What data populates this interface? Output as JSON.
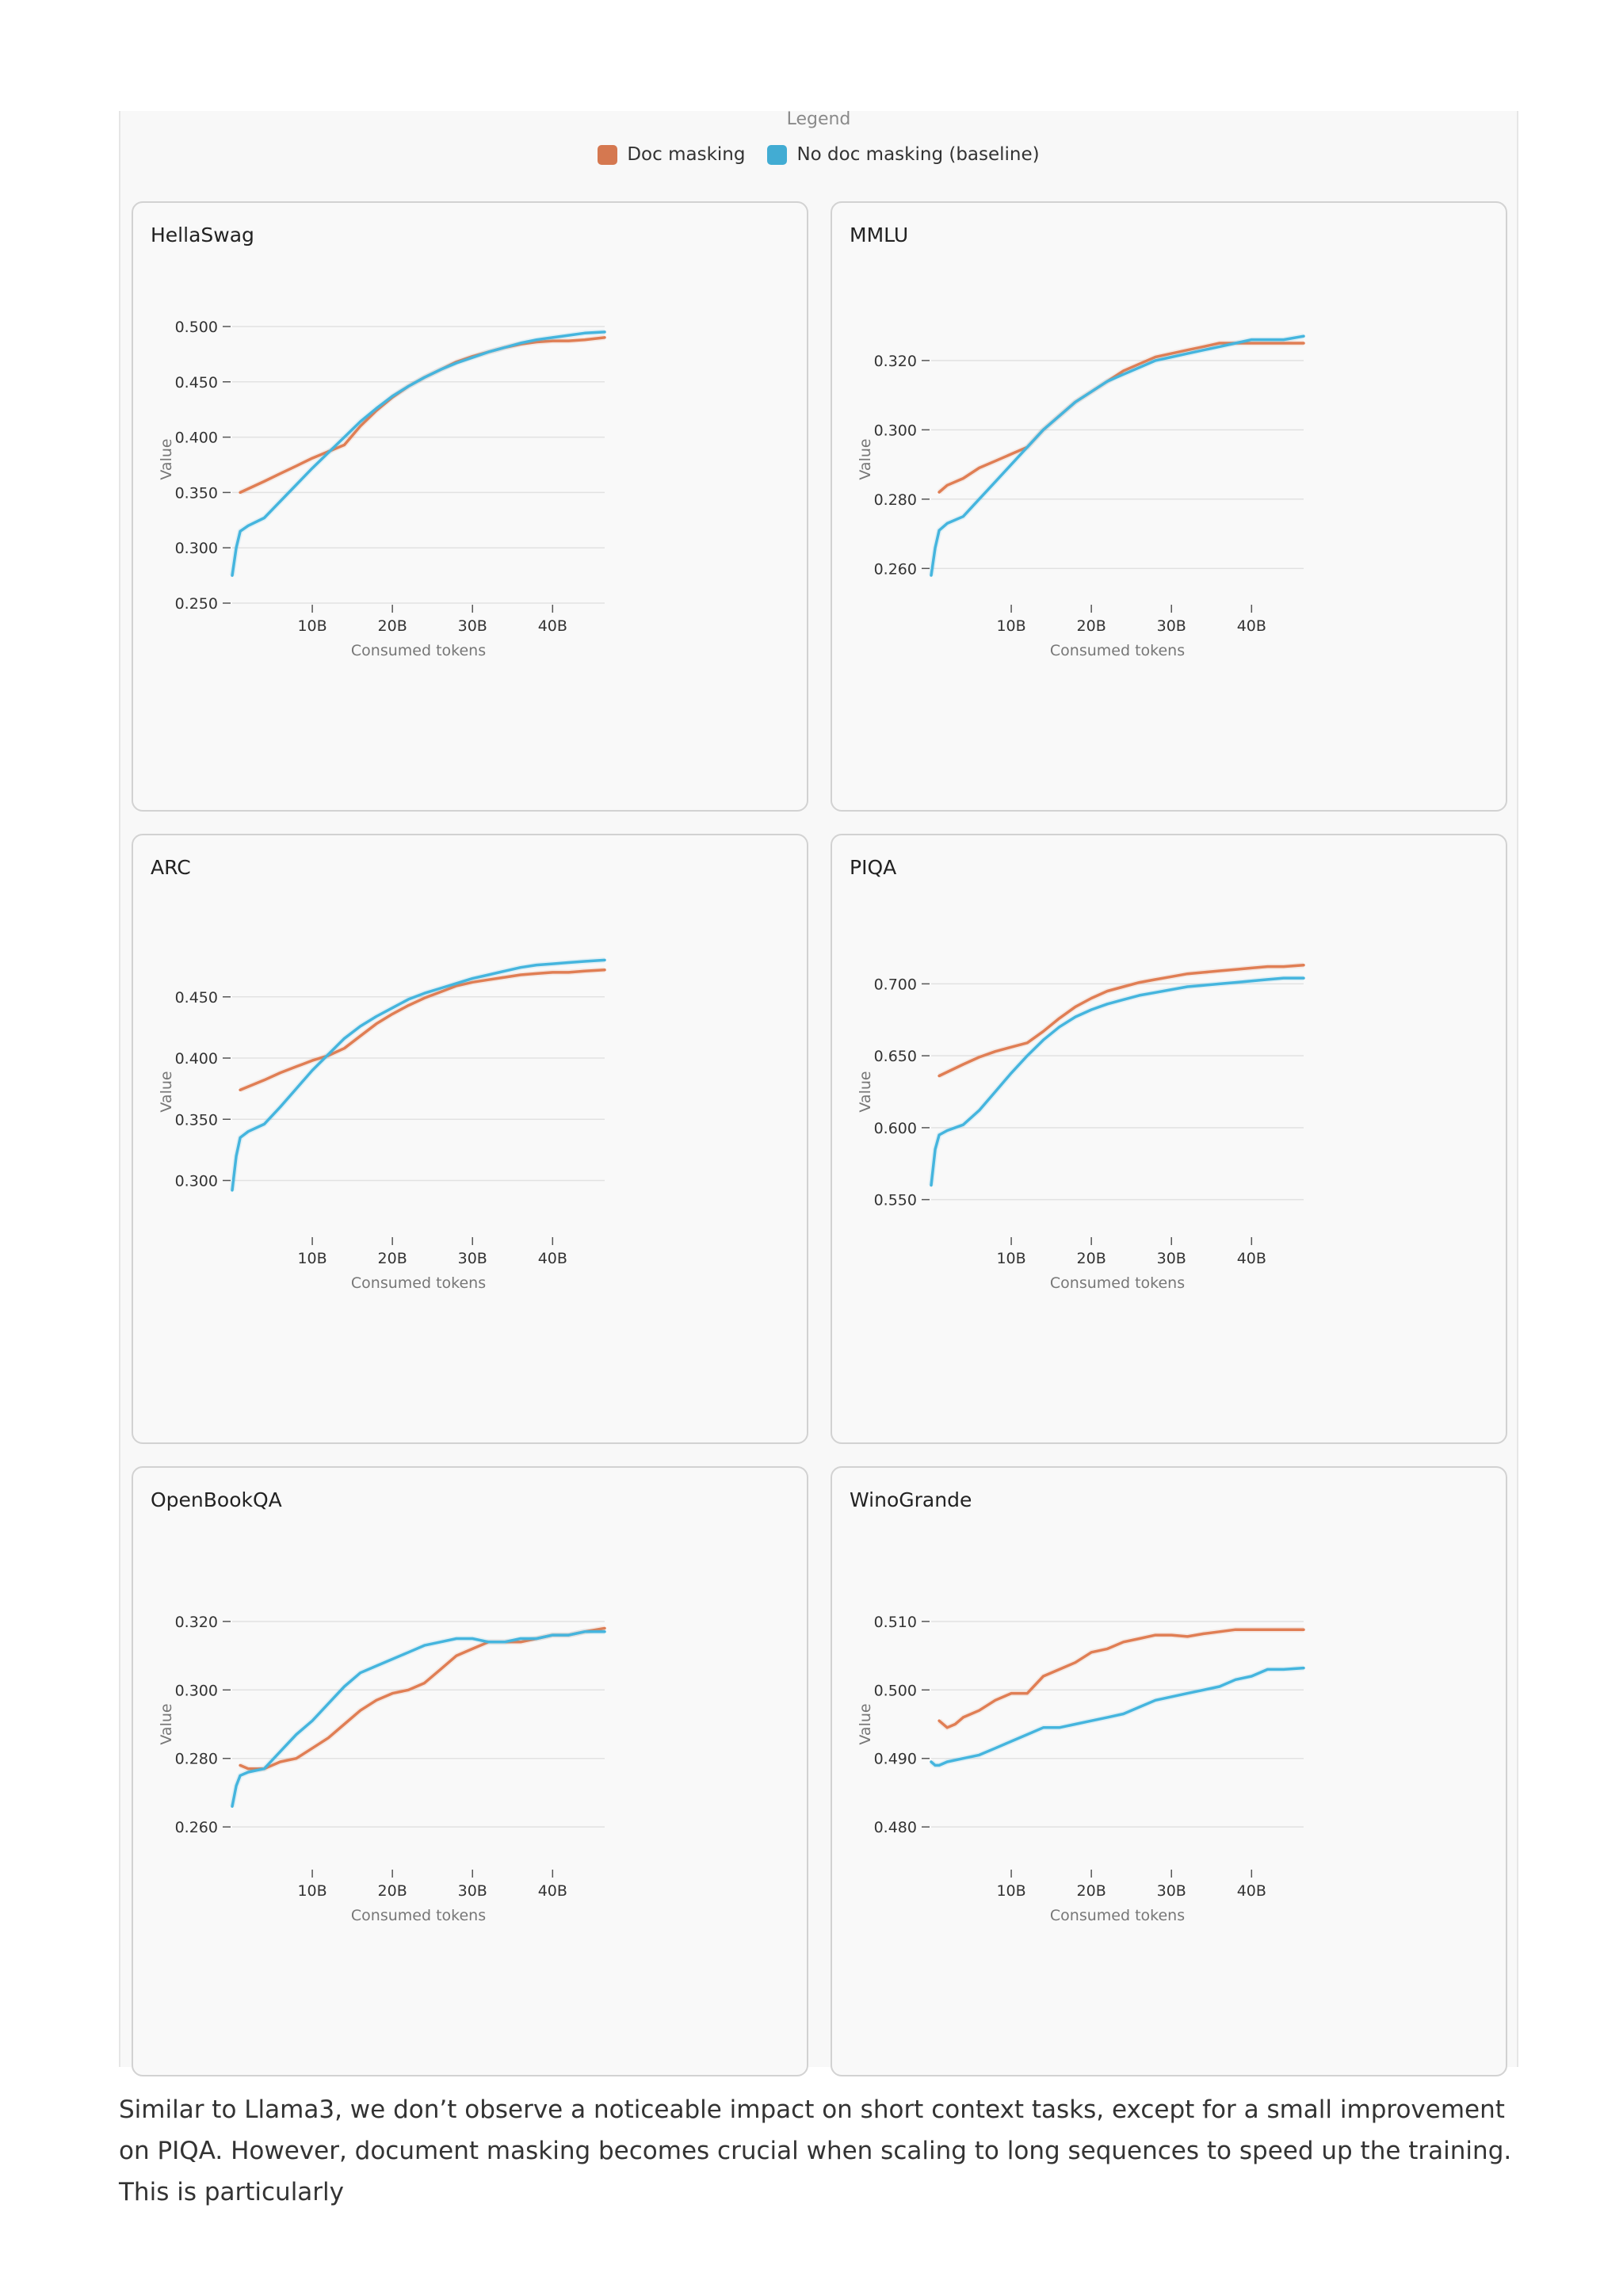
{
  "legend": {
    "title": "Legend",
    "items": [
      {
        "label": "Doc masking",
        "color": "#e07e54"
      },
      {
        "label": "No doc masking (baseline)",
        "color": "#45b5de"
      }
    ]
  },
  "caption": "Similar to Llama3, we don’t observe a noticeable impact on short context tasks, except for a small improvement on PIQA. However, document masking becomes crucial when scaling to long sequences to speed up the training. This is particularly",
  "chart_data": [
    {
      "type": "line",
      "title": "HellaSwag",
      "xlabel": "Consumed tokens",
      "ylabel": "Value",
      "xlim": [
        0,
        46.5
      ],
      "ylim": [
        0.25,
        0.51
      ],
      "xticks": [
        10,
        20,
        30,
        40
      ],
      "xtick_labels": [
        "10B",
        "20B",
        "30B",
        "40B"
      ],
      "yticks": [
        0.25,
        0.3,
        0.35,
        0.4,
        0.45,
        0.5
      ],
      "ytick_labels": [
        "0.250",
        "0.300",
        "0.350",
        "0.400",
        "0.450",
        "0.500"
      ],
      "series": [
        {
          "name": "Doc masking",
          "color": "#e07e54",
          "x": [
            1,
            4,
            6,
            8,
            10,
            12,
            14,
            16,
            18,
            20,
            22,
            24,
            26,
            28,
            30,
            32,
            34,
            36,
            38,
            40,
            42,
            44,
            46.5
          ],
          "y": [
            0.35,
            0.36,
            0.367,
            0.374,
            0.381,
            0.387,
            0.393,
            0.41,
            0.424,
            0.436,
            0.446,
            0.454,
            0.461,
            0.468,
            0.473,
            0.477,
            0.481,
            0.484,
            0.486,
            0.487,
            0.487,
            0.488,
            0.49
          ]
        },
        {
          "name": "No doc masking (baseline)",
          "color": "#45b5de",
          "x": [
            0,
            0.5,
            1,
            2,
            4,
            6,
            8,
            10,
            12,
            14,
            16,
            18,
            20,
            22,
            24,
            26,
            28,
            30,
            32,
            34,
            36,
            38,
            40,
            42,
            44,
            46.5
          ],
          "y": [
            0.275,
            0.3,
            0.315,
            0.32,
            0.327,
            0.342,
            0.357,
            0.372,
            0.386,
            0.4,
            0.414,
            0.426,
            0.437,
            0.446,
            0.454,
            0.461,
            0.467,
            0.472,
            0.477,
            0.481,
            0.485,
            0.488,
            0.49,
            0.492,
            0.494,
            0.495
          ]
        }
      ]
    },
    {
      "type": "line",
      "title": "MMLU",
      "xlabel": "Consumed tokens",
      "ylabel": "Value",
      "xlim": [
        0,
        46.5
      ],
      "ylim": [
        0.25,
        0.333
      ],
      "xticks": [
        10,
        20,
        30,
        40
      ],
      "xtick_labels": [
        "10B",
        "20B",
        "30B",
        "40B"
      ],
      "yticks": [
        0.26,
        0.28,
        0.3,
        0.32
      ],
      "ytick_labels": [
        "0.260",
        "0.280",
        "0.300",
        "0.320"
      ],
      "series": [
        {
          "name": "Doc masking",
          "color": "#e07e54",
          "x": [
            1,
            2,
            4,
            6,
            8,
            10,
            12,
            14,
            16,
            18,
            20,
            22,
            24,
            26,
            28,
            30,
            32,
            34,
            36,
            38,
            40,
            42,
            44,
            46.5
          ],
          "y": [
            0.282,
            0.284,
            0.286,
            0.289,
            0.291,
            0.293,
            0.295,
            0.3,
            0.304,
            0.308,
            0.311,
            0.314,
            0.317,
            0.319,
            0.321,
            0.322,
            0.323,
            0.324,
            0.325,
            0.325,
            0.325,
            0.325,
            0.325,
            0.325
          ]
        },
        {
          "name": "No doc masking (baseline)",
          "color": "#45b5de",
          "x": [
            0,
            0.5,
            1,
            2,
            4,
            6,
            8,
            10,
            12,
            14,
            16,
            18,
            20,
            22,
            24,
            26,
            28,
            30,
            32,
            34,
            36,
            38,
            40,
            42,
            44,
            46.5
          ],
          "y": [
            0.258,
            0.266,
            0.271,
            0.273,
            0.275,
            0.28,
            0.285,
            0.29,
            0.295,
            0.3,
            0.304,
            0.308,
            0.311,
            0.314,
            0.316,
            0.318,
            0.32,
            0.321,
            0.322,
            0.323,
            0.324,
            0.325,
            0.326,
            0.326,
            0.326,
            0.327
          ]
        }
      ]
    },
    {
      "type": "line",
      "title": "ARC",
      "xlabel": "Consumed tokens",
      "ylabel": "Value",
      "xlim": [
        0,
        46.5
      ],
      "ylim": [
        0.255,
        0.49
      ],
      "xticks": [
        10,
        20,
        30,
        40
      ],
      "xtick_labels": [
        "10B",
        "20B",
        "30B",
        "40B"
      ],
      "yticks": [
        0.3,
        0.35,
        0.4,
        0.45
      ],
      "ytick_labels": [
        "0.300",
        "0.350",
        "0.400",
        "0.450"
      ],
      "series": [
        {
          "name": "Doc masking",
          "color": "#e07e54",
          "x": [
            1,
            4,
            6,
            8,
            10,
            12,
            14,
            16,
            18,
            20,
            22,
            24,
            26,
            28,
            30,
            32,
            34,
            36,
            38,
            40,
            42,
            44,
            46.5
          ],
          "y": [
            0.374,
            0.382,
            0.388,
            0.393,
            0.398,
            0.402,
            0.408,
            0.418,
            0.428,
            0.436,
            0.443,
            0.449,
            0.454,
            0.459,
            0.462,
            0.464,
            0.466,
            0.468,
            0.469,
            0.47,
            0.47,
            0.471,
            0.472
          ]
        },
        {
          "name": "No doc masking (baseline)",
          "color": "#45b5de",
          "x": [
            0,
            0.5,
            1,
            2,
            4,
            6,
            8,
            10,
            12,
            14,
            16,
            18,
            20,
            22,
            24,
            26,
            28,
            30,
            32,
            34,
            36,
            38,
            40,
            42,
            44,
            46.5
          ],
          "y": [
            0.292,
            0.32,
            0.335,
            0.34,
            0.346,
            0.36,
            0.375,
            0.39,
            0.403,
            0.416,
            0.426,
            0.434,
            0.441,
            0.448,
            0.453,
            0.457,
            0.461,
            0.465,
            0.468,
            0.471,
            0.474,
            0.476,
            0.477,
            0.478,
            0.479,
            0.48
          ]
        }
      ]
    },
    {
      "type": "line",
      "title": "PIQA",
      "xlabel": "Consumed tokens",
      "ylabel": "Value",
      "xlim": [
        0,
        46.5
      ],
      "ylim": [
        0.525,
        0.725
      ],
      "xticks": [
        10,
        20,
        30,
        40
      ],
      "xtick_labels": [
        "10B",
        "20B",
        "30B",
        "40B"
      ],
      "yticks": [
        0.55,
        0.6,
        0.65,
        0.7
      ],
      "ytick_labels": [
        "0.550",
        "0.600",
        "0.650",
        "0.700"
      ],
      "series": [
        {
          "name": "Doc masking",
          "color": "#e07e54",
          "x": [
            1,
            4,
            6,
            8,
            10,
            12,
            14,
            16,
            18,
            20,
            22,
            24,
            26,
            28,
            30,
            32,
            34,
            36,
            38,
            40,
            42,
            44,
            46.5
          ],
          "y": [
            0.636,
            0.644,
            0.649,
            0.653,
            0.656,
            0.659,
            0.667,
            0.676,
            0.684,
            0.69,
            0.695,
            0.698,
            0.701,
            0.703,
            0.705,
            0.707,
            0.708,
            0.709,
            0.71,
            0.711,
            0.712,
            0.712,
            0.713
          ]
        },
        {
          "name": "No doc masking (baseline)",
          "color": "#45b5de",
          "x": [
            0,
            0.5,
            1,
            2,
            4,
            6,
            8,
            10,
            12,
            14,
            16,
            18,
            20,
            22,
            24,
            26,
            28,
            30,
            32,
            34,
            36,
            38,
            40,
            42,
            44,
            46.5
          ],
          "y": [
            0.56,
            0.585,
            0.595,
            0.598,
            0.602,
            0.612,
            0.625,
            0.638,
            0.65,
            0.661,
            0.67,
            0.677,
            0.682,
            0.686,
            0.689,
            0.692,
            0.694,
            0.696,
            0.698,
            0.699,
            0.7,
            0.701,
            0.702,
            0.703,
            0.704,
            0.704
          ]
        }
      ]
    },
    {
      "type": "line",
      "title": "OpenBookQA",
      "xlabel": "Consumed tokens",
      "ylabel": "Value",
      "xlim": [
        0,
        46.5
      ],
      "ylim": [
        0.248,
        0.332
      ],
      "xticks": [
        10,
        20,
        30,
        40
      ],
      "xtick_labels": [
        "10B",
        "20B",
        "30B",
        "40B"
      ],
      "yticks": [
        0.26,
        0.28,
        0.3,
        0.32
      ],
      "ytick_labels": [
        "0.260",
        "0.280",
        "0.300",
        "0.320"
      ],
      "series": [
        {
          "name": "Doc masking",
          "color": "#e07e54",
          "x": [
            1,
            2,
            4,
            6,
            8,
            10,
            12,
            14,
            16,
            18,
            20,
            22,
            24,
            26,
            28,
            30,
            32,
            34,
            36,
            38,
            40,
            42,
            44,
            46.5
          ],
          "y": [
            0.278,
            0.277,
            0.277,
            0.279,
            0.28,
            0.283,
            0.286,
            0.29,
            0.294,
            0.297,
            0.299,
            0.3,
            0.302,
            0.306,
            0.31,
            0.312,
            0.314,
            0.314,
            0.314,
            0.315,
            0.316,
            0.316,
            0.317,
            0.318
          ]
        },
        {
          "name": "No doc masking (baseline)",
          "color": "#45b5de",
          "x": [
            0,
            0.5,
            1,
            2,
            4,
            6,
            8,
            10,
            12,
            14,
            16,
            18,
            20,
            22,
            24,
            26,
            28,
            30,
            32,
            34,
            36,
            38,
            40,
            42,
            44,
            46.5
          ],
          "y": [
            0.266,
            0.272,
            0.275,
            0.276,
            0.277,
            0.282,
            0.287,
            0.291,
            0.296,
            0.301,
            0.305,
            0.307,
            0.309,
            0.311,
            0.313,
            0.314,
            0.315,
            0.315,
            0.314,
            0.314,
            0.315,
            0.315,
            0.316,
            0.316,
            0.317,
            0.317
          ]
        }
      ]
    },
    {
      "type": "line",
      "title": "WinoGrande",
      "xlabel": "Consumed tokens",
      "ylabel": "Value",
      "xlim": [
        0,
        46.5
      ],
      "ylim": [
        0.474,
        0.516
      ],
      "xticks": [
        10,
        20,
        30,
        40
      ],
      "xtick_labels": [
        "10B",
        "20B",
        "30B",
        "40B"
      ],
      "yticks": [
        0.48,
        0.49,
        0.5,
        0.51
      ],
      "ytick_labels": [
        "0.480",
        "0.490",
        "0.500",
        "0.510"
      ],
      "series": [
        {
          "name": "Doc masking",
          "color": "#e07e54",
          "x": [
            1,
            2,
            3,
            4,
            6,
            8,
            10,
            12,
            14,
            16,
            18,
            20,
            22,
            24,
            26,
            28,
            30,
            32,
            34,
            36,
            38,
            40,
            42,
            44,
            46.5
          ],
          "y": [
            0.4955,
            0.4945,
            0.495,
            0.496,
            0.497,
            0.4985,
            0.4995,
            0.4995,
            0.502,
            0.503,
            0.504,
            0.5055,
            0.506,
            0.507,
            0.5075,
            0.508,
            0.508,
            0.5078,
            0.5082,
            0.5085,
            0.5088,
            0.5088,
            0.5088,
            0.5088,
            0.5088
          ]
        },
        {
          "name": "No doc masking (baseline)",
          "color": "#45b5de",
          "x": [
            0,
            0.5,
            1,
            2,
            4,
            6,
            8,
            10,
            12,
            14,
            16,
            18,
            20,
            22,
            24,
            26,
            28,
            30,
            32,
            34,
            36,
            38,
            40,
            42,
            44,
            46.5
          ],
          "y": [
            0.4895,
            0.489,
            0.489,
            0.4895,
            0.49,
            0.4905,
            0.4915,
            0.4925,
            0.4935,
            0.4945,
            0.4945,
            0.495,
            0.4955,
            0.496,
            0.4965,
            0.4975,
            0.4985,
            0.499,
            0.4995,
            0.5,
            0.5005,
            0.5015,
            0.502,
            0.503,
            0.503,
            0.5032
          ]
        }
      ]
    }
  ]
}
